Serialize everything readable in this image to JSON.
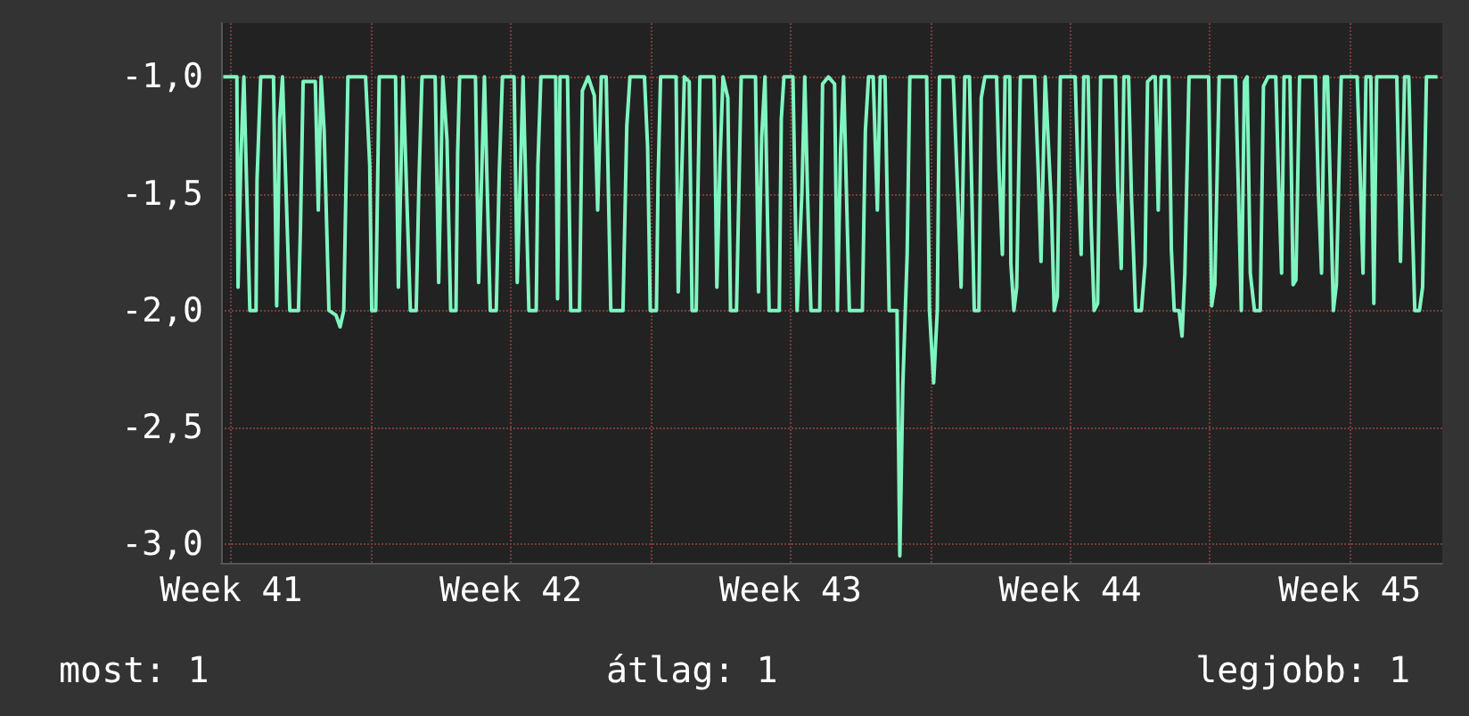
{
  "chart_data": {
    "type": "line",
    "color": "#80f5c0",
    "marker": "none",
    "line_style": "solid",
    "grid": true,
    "xlim": [
      "--10-12T06:00",
      "--11-11T19:30"
    ],
    "xticks": [
      {
        "value": "--10-12T12:00",
        "label": "Week 41"
      },
      {
        "value": "--10-16",
        "label": null
      },
      {
        "value": "--10-19T12:00",
        "label": "Week 42"
      },
      {
        "value": "--10-23",
        "label": null
      },
      {
        "value": "--10-26T12:00",
        "label": "Week 43"
      },
      {
        "value": "--10-30",
        "label": null
      },
      {
        "value": "--11-02T12:00",
        "label": "Week 44"
      },
      {
        "value": "--11-06",
        "label": null
      },
      {
        "value": "--11-09T12:00",
        "label": "Week 45"
      }
    ],
    "ylim": [
      -3.08,
      -0.77
    ],
    "yticks": [
      {
        "value": -3,
        "label": "-3,0"
      },
      {
        "value": -2.5,
        "label": "-2,5"
      },
      {
        "value": -2,
        "label": "-2,0"
      },
      {
        "value": -1.5,
        "label": "-1,5"
      },
      {
        "value": -1,
        "label": "-1,0"
      }
    ],
    "annotations": [
      "most: 1",
      "átlag: 1",
      "legjobb: 1"
    ],
    "x": [
      "--10-12T07:18",
      "--10-12T15:30",
      "--10-12T16:12",
      "--10-12T18:00",
      "--10-12T19:42",
      "--10-12T23:18",
      "--10-13T03:00",
      "--10-13T03:36",
      "--10-13T05:48",
      "--10-13T13:30",
      "--10-13T15:24",
      "--10-13T17:12",
      "--10-13T18:54",
      "--10-13T23:18",
      "--10-14T04:30",
      "--10-14T05:42",
      "--10-14T07:18",
      "--10-14T14:36",
      "--10-14T16:24",
      "--10-14T18:06",
      "--10-14T19:54",
      "--10-14T22:48",
      "--10-15T03:00",
      "--10-15T05:30",
      "--10-15T07:42",
      "--10-15T10:12",
      "--10-15T20:48",
      "--10-15T23:18",
      "--10-16T00:30",
      "--10-16T02:54",
      "--10-16T05:00",
      "--10-16T14:48",
      "--10-16T16:30",
      "--10-16T19:18",
      "--10-16T23:42",
      "--10-17T03:12",
      "--10-17T04:54",
      "--10-17T06:42",
      "--10-17T14:36",
      "--10-17T16:42",
      "--10-17T19:12",
      "--10-17T21:42",
      "--10-17T23:54",
      "--10-18T03:06",
      "--10-18T04:06",
      "--10-18T05:18",
      "--10-18T14:48",
      "--10-18T16:42",
      "--10-18T20:12",
      "--10-18T23:42",
      "--10-19T03:18",
      "--10-19T05:06",
      "--10-19T07:00",
      "--10-19T14:00",
      "--10-19T15:54",
      "--10-19T19:24",
      "--10-19T22:54",
      "--10-20T03:18",
      "--10-20T04:18",
      "--10-20T06:06",
      "--10-20T15:00",
      "--10-20T16:06",
      "--10-20T17:36",
      "--10-20T22:06",
      "--10-21T00:00",
      "--10-21T05:18",
      "--10-21T07:00",
      "--10-21T10:30",
      "--10-21T14:12",
      "--10-21T16:12",
      "--10-21T18:24",
      "--10-21T21:18",
      "--10-22T00:06",
      "--10-22T07:24",
      "--10-22T09:42",
      "--10-22T11:36",
      "--10-22T18:48",
      "--10-22T20:18",
      "--10-22T22:12",
      "--10-22T23:48",
      "--10-23T03:30",
      "--10-23T04:30",
      "--10-23T06:00",
      "--10-23T15:18",
      "--10-23T16:36",
      "--10-23T18:30",
      "--10-23T20:18",
      "--10-23T23:12",
      "--10-24T00:54",
      "--10-24T03:24",
      "--10-24T04:24",
      "--10-24T05:36",
      "--10-24T14:06",
      "--10-24T15:48",
      "--10-24T17:42",
      "--10-24T19:30",
      "--10-24T22:24",
      "--10-25T00:00",
      "--10-25T03:36",
      "--10-25T05:24",
      "--10-25T06:24",
      "--10-25T15:00",
      "--10-25T16:48",
      "--10-25T18:42",
      "--10-25T20:42",
      "--10-25T23:12",
      "--10-26T05:18",
      "--10-26T06:30",
      "--10-26T08:06",
      "--10-26T13:30",
      "--10-26T16:00",
      "--10-26T18:54",
      "--10-26T20:36",
      "--10-26T22:24",
      "--10-27T00:18",
      "--10-27T05:36",
      "--10-27T07:18",
      "--10-27T10:48",
      "--10-27T14:30",
      "--10-27T16:12",
      "--10-27T18:06",
      "--10-27T19:54",
      "--10-27T23:24",
      "--10-28T07:12",
      "--10-28T09:00",
      "--10-28T10:54",
      "--10-28T13:42",
      "--10-28T16:12",
      "--10-28T17:54",
      "--10-28T20:48",
      "--10-28T23:18",
      "--10-29T04:00",
      "--10-29T05:42",
      "--10-29T07:30",
      "--10-29T10:06",
      "--10-29T11:42",
      "--10-29T21:48",
      "--10-29T23:30",
      "--10-30T02:00",
      "--10-30T04:12",
      "--10-30T05:30",
      "--10-30T13:48",
      "--10-30T16:18",
      "--10-30T18:30",
      "--10-30T20:42",
      "--10-30T23:30",
      "--10-31T02:24",
      "--10-31T05:12",
      "--10-31T06:36",
      "--10-31T08:48",
      "--10-31T15:48",
      "--10-31T17:18",
      "--10-31T19:18",
      "--10-31T20:54",
      "--10-31T23:42",
      "--11-01T00:24",
      "--11-01T02:12",
      "--11-01T03:54",
      "--11-01T06:06",
      "--11-01T14:42",
      "--11-01T16:48",
      "--11-01T18:30",
      "--11-01T21:00",
      "--11-02T00:42",
      "--11-02T02:24",
      "--11-02T04:18",
      "--11-02T06:06",
      "--11-02T15:00",
      "--11-02T16:42",
      "--11-02T18:36",
      "--11-02T20:12",
      "--11-02T22:48",
      "--11-03T00:36",
      "--11-03T02:24",
      "--11-03T04:30",
      "--11-03T06:18",
      "--11-03T15:12",
      "--11-03T16:36",
      "--11-03T18:42",
      "--11-03T20:18",
      "--11-03T23:06",
      "--11-04T00:48",
      "--11-04T03:18",
      "--11-04T06:48",
      "--11-04T09:00",
      "--11-04T10:30",
      "--11-04T13:24",
      "--11-04T15:06",
      "--11-04T16:54",
      "--11-04T18:36",
      "--11-04T23:18",
      "--11-05T00:48",
      "--11-05T02:30",
      "--11-05T05:24",
      "--11-05T07:12",
      "--11-05T08:54",
      "--11-05T11:24",
      "--11-05T23:12",
      "--11-06T01:00",
      "--11-06T02:54",
      "--11-06T05:30",
      "--11-06T15:18",
      "--11-06T17:00",
      "--11-06T18:48",
      "--11-06T20:42",
      "--11-06T22:18",
      "--11-07T00:12",
      "--11-07T02:42",
      "--11-07T06:12",
      "--11-07T08:06",
      "--11-07T10:54",
      "--11-07T15:30",
      "--11-07T17:00",
      "--11-07T19:00",
      "--11-07T20:30",
      "--11-08T00:00",
      "--11-08T01:54",
      "--11-08T03:36",
      "--11-08T05:48",
      "--11-08T15:18",
      "--11-08T17:12",
      "--11-08T19:00",
      "--11-08T20:42",
      "--11-08T22:36",
      "--11-09T02:06",
      "--11-09T03:54",
      "--11-09T06:48",
      "--11-09T16:24",
      "--11-09T18:12",
      "--11-09T19:54",
      "--11-09T21:42",
      "--11-10T00:36",
      "--11-10T02:24",
      "--11-10T04:06",
      "--11-10T16:12",
      "--11-10T18:24",
      "--11-10T20:54",
      "--11-10T23:24",
      "--11-11T01:06",
      "--11-11T03:00",
      "--11-11T05:48",
      "--11-11T07:42",
      "--11-11T10:00",
      "--11-11T16:36"
    ],
    "values": [
      -1,
      -1,
      -1.9,
      -1.33,
      -1,
      -2,
      -2,
      -1.44,
      -1,
      -1,
      -1.98,
      -1.18,
      -1,
      -2,
      -2,
      -1.64,
      -1.02,
      -1.02,
      -1.57,
      -1,
      -1.23,
      -2,
      -2.02,
      -2.07,
      -2,
      -1,
      -1,
      -1.38,
      -2,
      -2,
      -1,
      -1,
      -1.9,
      -1,
      -2,
      -2,
      -1.44,
      -1,
      -1,
      -1.88,
      -1,
      -1.27,
      -2,
      -2,
      -1.33,
      -1,
      -1,
      -1.88,
      -1,
      -2,
      -2,
      -1.41,
      -1,
      -1,
      -1.88,
      -1,
      -2,
      -2,
      -1.38,
      -1,
      -1,
      -1.95,
      -1,
      -1,
      -2,
      -2,
      -1.06,
      -1,
      -1.08,
      -1.57,
      -1,
      -1,
      -2,
      -2,
      -1.21,
      -1,
      -1,
      -1,
      -1.3,
      -2,
      -2,
      -1.44,
      -1,
      -1,
      -1.92,
      -1.46,
      -1,
      -1.02,
      -2,
      -2,
      -1.51,
      -1,
      -1,
      -1.9,
      -1.36,
      -1,
      -1.09,
      -2,
      -2,
      -1.36,
      -1,
      -1,
      -1.92,
      -1.26,
      -1,
      -2,
      -2,
      -1.18,
      -1,
      -1,
      -2,
      -1.49,
      -1,
      -1.54,
      -2,
      -2,
      -1.03,
      -1,
      -1.03,
      -2,
      -1.31,
      -1,
      -2,
      -2,
      -1.23,
      -1,
      -1,
      -1.57,
      -1,
      -1,
      -2,
      -2,
      -3.05,
      -2.32,
      -1.76,
      -1,
      -1,
      -2,
      -2.31,
      -2,
      -1,
      -1,
      -1.47,
      -1.9,
      -1,
      -1,
      -2,
      -2,
      -1.09,
      -1,
      -1,
      -1.4,
      -1.76,
      -1,
      -1,
      -1.8,
      -2,
      -1.9,
      -1,
      -1,
      -1.4,
      -1.79,
      -1,
      -1.55,
      -2,
      -1.94,
      -1,
      -1,
      -1.41,
      -1.76,
      -1,
      -1,
      -1.63,
      -2,
      -1.97,
      -1,
      -1,
      -1.47,
      -1.82,
      -1,
      -1,
      -1.51,
      -2,
      -2,
      -1.8,
      -1.02,
      -1,
      -1,
      -1.57,
      -1,
      -1,
      -1.74,
      -2,
      -2,
      -2.11,
      -1.84,
      -1,
      -1,
      -1.98,
      -1.89,
      -1,
      -1,
      -1.47,
      -2,
      -1.02,
      -1,
      -1.84,
      -2,
      -2,
      -1.04,
      -1,
      -1,
      -1.4,
      -1.84,
      -1,
      -1,
      -1.89,
      -1.87,
      -1,
      -1,
      -1.51,
      -1.84,
      -1,
      -1,
      -2,
      -1.89,
      -1,
      -1,
      -1.42,
      -1.84,
      -1,
      -1,
      -1.97,
      -1,
      -1,
      -1.79,
      -1,
      -1,
      -1.51,
      -2,
      -2,
      -1.9,
      -1,
      -1
    ]
  }
}
